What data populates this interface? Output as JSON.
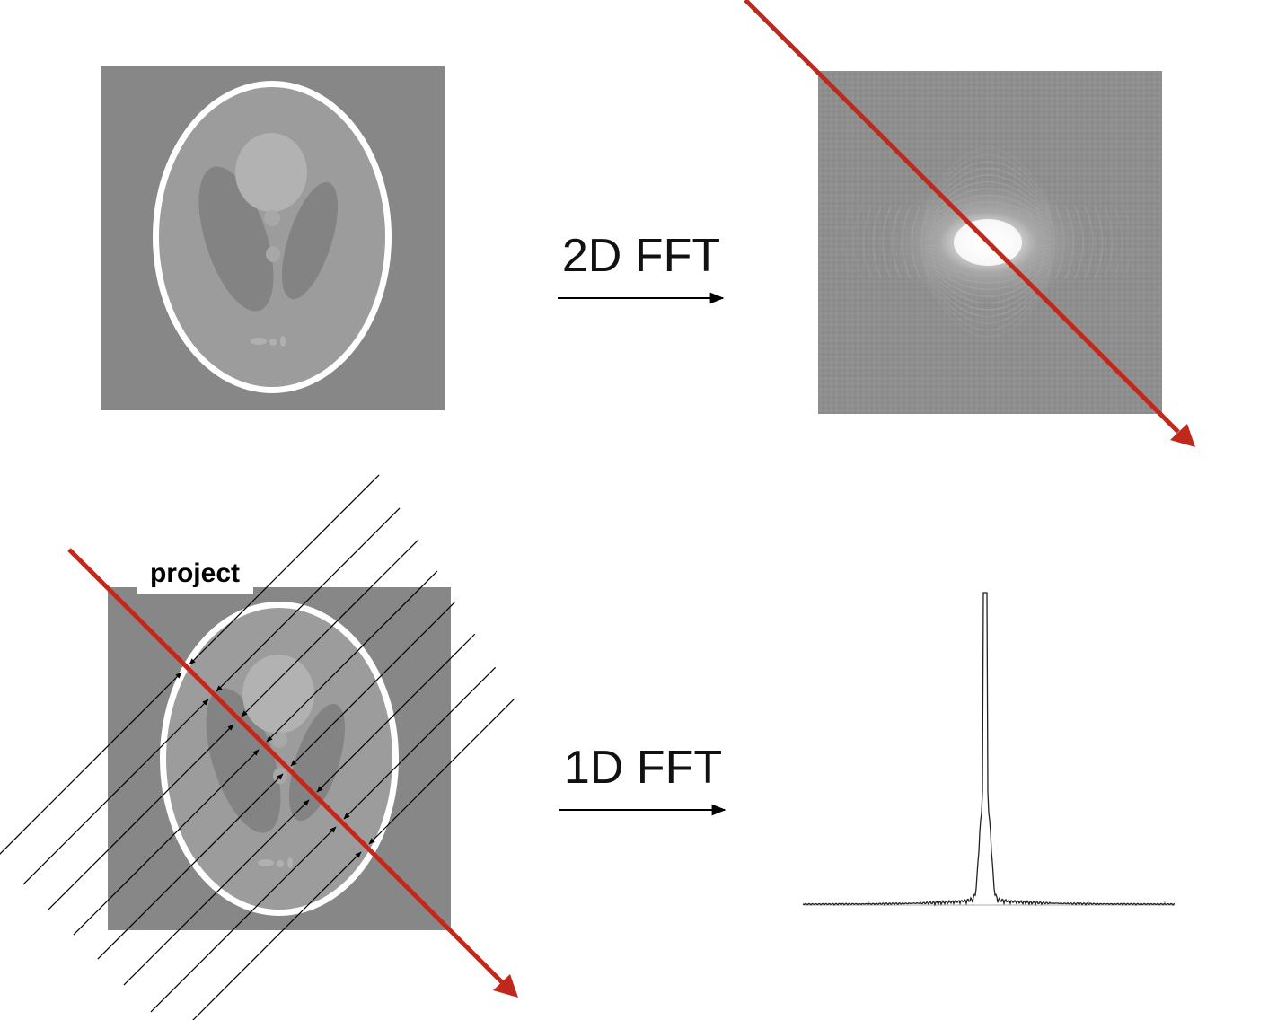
{
  "labels": {
    "fft2d": "2D FFT",
    "fft1d": "1D FFT",
    "project": "project"
  },
  "colors": {
    "red_line": "#c0281c",
    "phantom_bg": "#878787",
    "phantom_body": "#9e9e9e",
    "phantom_ring": "#ffffff",
    "phantom_dark": "#808080",
    "phantom_light": "#b0b0b0"
  },
  "panels": [
    "phantom-image",
    "fft2d-spectrum-image",
    "phantom-projection-image",
    "fft1d-profile-plot"
  ]
}
